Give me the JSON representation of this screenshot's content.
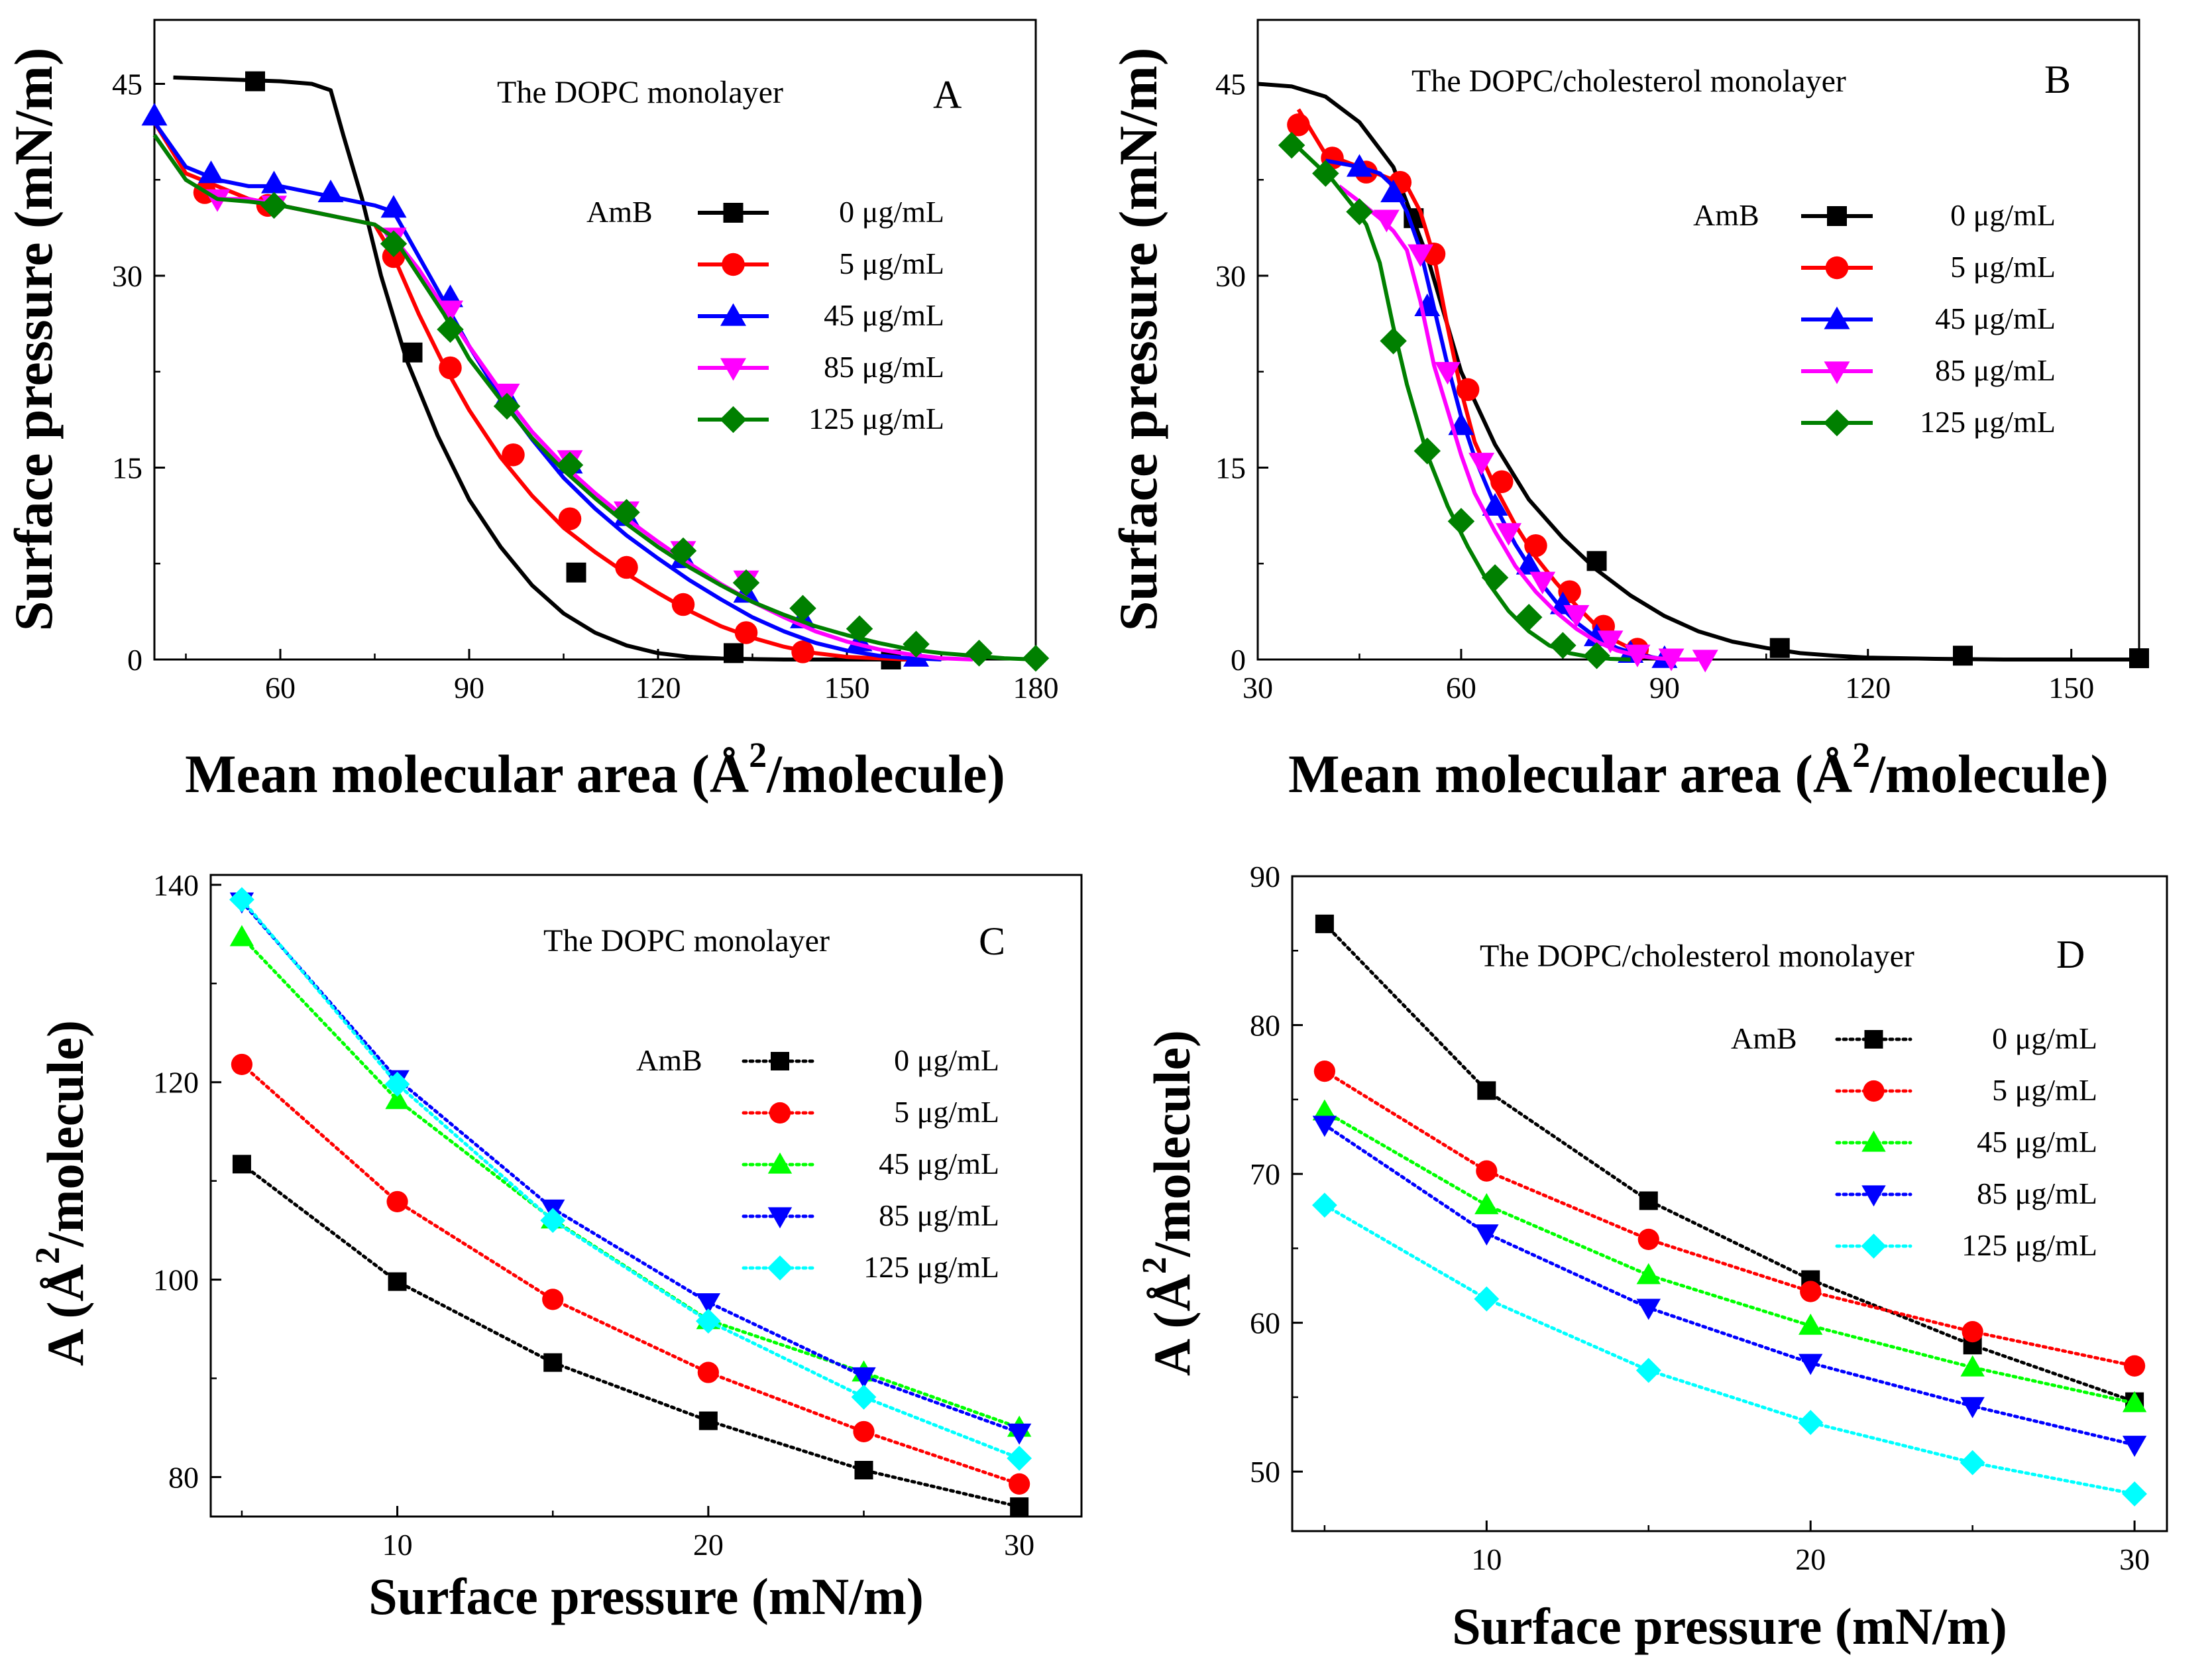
{
  "chart_data": [
    {
      "panel": "A",
      "type": "line",
      "title": "The DOPC monolayer",
      "panel_letter": "A",
      "xlabel_main": "Mean molecular area (Å",
      "xlabel_sup": "2",
      "xlabel_end": "/molecule)",
      "ylabel": "Surface pressure (mN/m)",
      "xlim": [
        40,
        180
      ],
      "ylim": [
        0,
        50
      ],
      "xticks": [
        60,
        90,
        120,
        150,
        180
      ],
      "yticks": [
        0,
        15,
        30,
        45
      ],
      "legend_title": "AmB",
      "legend_position": "right",
      "series": [
        {
          "name": "0 μg/mL",
          "color": "#000000",
          "marker": "square",
          "line": "solid",
          "x": [
            43,
            60,
            65,
            68,
            70,
            73,
            76,
            80,
            85,
            90,
            95,
            100,
            105,
            110,
            115,
            120,
            125,
            130,
            135,
            140,
            150,
            160
          ],
          "y": [
            45.5,
            45.2,
            45,
            44.5,
            41,
            36,
            30,
            23.5,
            17.5,
            12.5,
            8.8,
            5.8,
            3.6,
            2.1,
            1.1,
            0.5,
            0.2,
            0.08,
            0.03,
            0,
            0,
            0
          ],
          "mx": [
            56,
            81,
            107,
            132,
            157
          ],
          "my": [
            45.2,
            24,
            6.8,
            0.5,
            0
          ]
        },
        {
          "name": "5 μg/mL",
          "color": "#ff0000",
          "marker": "circle",
          "line": "solid",
          "x": [
            40,
            45,
            50,
            55,
            60,
            65,
            70,
            75,
            78,
            82,
            86,
            90,
            95,
            100,
            105,
            110,
            115,
            120,
            125,
            130,
            135,
            140,
            145,
            150,
            155,
            160
          ],
          "y": [
            42,
            38,
            37,
            36,
            35.5,
            35,
            34.5,
            34,
            31.5,
            27,
            23,
            19.5,
            15.8,
            12.8,
            10.3,
            8.4,
            6.7,
            5.2,
            3.8,
            2.6,
            1.7,
            1,
            0.5,
            0.2,
            0.1,
            0
          ],
          "mx": [
            48,
            58,
            78,
            87,
            97,
            106,
            115,
            124,
            134,
            143
          ],
          "my": [
            36.5,
            35.5,
            31.5,
            22.8,
            16,
            11,
            7.2,
            4.3,
            2.1,
            0.6
          ]
        },
        {
          "name": "45 μg/mL",
          "color": "#0000ff",
          "marker": "triangle-up",
          "line": "solid",
          "x": [
            40,
            45,
            50,
            55,
            60,
            65,
            70,
            75,
            78,
            82,
            86,
            90,
            95,
            100,
            105,
            110,
            115,
            120,
            125,
            130,
            135,
            140,
            145,
            150,
            155,
            160,
            165
          ],
          "y": [
            42,
            38.5,
            37.5,
            37,
            37,
            36.5,
            36,
            35.5,
            35,
            31.5,
            28,
            24.5,
            20.5,
            17.2,
            14.2,
            11.8,
            9.7,
            7.9,
            6.2,
            4.7,
            3.3,
            2.2,
            1.3,
            0.7,
            0.3,
            0.1,
            0
          ],
          "mx": [
            40,
            49,
            59,
            68,
            78,
            87,
            96,
            106,
            115,
            124,
            134,
            143,
            152,
            161
          ],
          "my": [
            42.5,
            38,
            37.2,
            36.5,
            35.3,
            28.3,
            20.5,
            15.3,
            11.2,
            7.9,
            5.2,
            3.2,
            1.4,
            0.2
          ]
        },
        {
          "name": "85 μg/mL",
          "color": "#ff00ff",
          "marker": "triangle-down",
          "line": "solid",
          "x": [
            40,
            45,
            50,
            55,
            60,
            65,
            70,
            75,
            78,
            82,
            86,
            90,
            95,
            100,
            105,
            110,
            115,
            120,
            125,
            130,
            135,
            140,
            145,
            150,
            155,
            160,
            165,
            170
          ],
          "y": [
            41,
            37.5,
            36,
            36,
            35.5,
            35,
            34.5,
            34,
            33,
            30.5,
            27.5,
            24.5,
            21,
            17.8,
            15.2,
            13,
            11,
            9.2,
            7.5,
            5.9,
            4.5,
            3.3,
            2.2,
            1.4,
            0.8,
            0.4,
            0.1,
            0
          ],
          "mx": [
            50,
            59,
            78,
            87,
            96,
            106,
            115,
            124,
            134
          ],
          "my": [
            36,
            35.5,
            33,
            27.3,
            20.8,
            15.6,
            11.6,
            8.5,
            6.2
          ]
        },
        {
          "name": "125 μg/mL",
          "color": "#008000",
          "marker": "diamond",
          "line": "solid",
          "x": [
            40,
            45,
            50,
            55,
            60,
            65,
            70,
            75,
            78,
            82,
            86,
            90,
            95,
            100,
            105,
            110,
            115,
            120,
            125,
            130,
            135,
            140,
            145,
            150,
            155,
            160,
            165,
            170,
            175,
            180
          ],
          "y": [
            41,
            37.5,
            36,
            35.8,
            35.5,
            35,
            34.5,
            34,
            33,
            30,
            27,
            23.5,
            20.3,
            17.3,
            14.8,
            12.6,
            10.6,
            8.8,
            7.2,
            5.8,
            4.5,
            3.5,
            2.6,
            1.9,
            1.3,
            0.8,
            0.5,
            0.3,
            0.1,
            0
          ],
          "mx": [
            59,
            78,
            87,
            96,
            106,
            115,
            124,
            134,
            143,
            152,
            161,
            171,
            180
          ],
          "my": [
            35.5,
            32.5,
            25.8,
            19.8,
            15.2,
            11.5,
            8.5,
            6,
            4,
            2.4,
            1.2,
            0.5,
            0.1
          ]
        }
      ]
    },
    {
      "panel": "B",
      "type": "line",
      "title": "The DOPC/cholesterol monolayer",
      "panel_letter": "B",
      "xlabel_main": "Mean molecular area (Å",
      "xlabel_sup": "2",
      "xlabel_end": "/molecule)",
      "ylabel": "Surface pressure (mN/m)",
      "xlim": [
        30,
        160
      ],
      "ylim": [
        0,
        50
      ],
      "xticks": [
        30,
        60,
        90,
        120,
        150
      ],
      "yticks": [
        0,
        15,
        30,
        45
      ],
      "legend_title": "AmB",
      "legend_position": "right",
      "series": [
        {
          "name": "0 μg/mL",
          "color": "#000000",
          "marker": "square",
          "line": "solid",
          "x": [
            30,
            35,
            40,
            45,
            50,
            55,
            60,
            65,
            70,
            75,
            80,
            85,
            90,
            95,
            100,
            105,
            110,
            115,
            120,
            130,
            140,
            150,
            160
          ],
          "y": [
            45,
            44.8,
            44,
            42,
            38.5,
            31.5,
            22.5,
            16.8,
            12.5,
            9.5,
            7,
            5,
            3.4,
            2.2,
            1.4,
            0.9,
            0.5,
            0.3,
            0.15,
            0.05,
            0,
            0,
            0
          ],
          "mx": [
            53,
            80,
            107,
            134,
            160
          ],
          "my": [
            34.5,
            7.7,
            0.9,
            0.3,
            0.1
          ]
        },
        {
          "name": "5 μg/mL",
          "color": "#ff0000",
          "marker": "circle",
          "line": "solid",
          "x": [
            36,
            40,
            45,
            50,
            52,
            54,
            56,
            58,
            60,
            62,
            65,
            68,
            71,
            74,
            77,
            80,
            83,
            86,
            88
          ],
          "y": [
            43,
            39.5,
            38.5,
            37.5,
            37,
            35,
            31.5,
            26,
            21,
            17,
            13.5,
            10.5,
            8,
            6,
            4.2,
            2.6,
            1.4,
            0.6,
            0.2
          ],
          "mx": [
            36,
            41,
            46,
            51,
            56,
            61,
            66,
            71,
            76,
            81,
            86
          ],
          "my": [
            41.8,
            39.2,
            38.1,
            37.3,
            31.7,
            21.1,
            13.9,
            8.9,
            5.3,
            2.6,
            0.8
          ]
        },
        {
          "name": "45 μg/mL",
          "color": "#0000ff",
          "marker": "triangle-up",
          "line": "solid",
          "x": [
            40,
            45,
            48,
            50,
            52,
            54,
            56,
            58,
            60,
            62,
            65,
            68,
            71,
            74,
            77,
            80,
            83,
            86,
            89,
            92
          ],
          "y": [
            39,
            38.5,
            38,
            37,
            35,
            32,
            27.5,
            23,
            19,
            15.8,
            12,
            9,
            6.5,
            4.5,
            2.9,
            1.7,
            0.9,
            0.4,
            0.1,
            0
          ],
          "mx": [
            45,
            50,
            55,
            60,
            65,
            70,
            75,
            80,
            85,
            90
          ],
          "my": [
            38.5,
            36.5,
            27.6,
            18.3,
            12,
            7.4,
            4.3,
            1.8,
            0.5,
            0.1
          ]
        },
        {
          "name": "85 μg/mL",
          "color": "#ff00ff",
          "marker": "triangle-down",
          "line": "solid",
          "x": [
            42,
            45,
            48,
            50,
            52,
            54,
            56,
            58,
            60,
            62,
            65,
            68,
            71,
            74,
            77,
            80,
            83,
            86,
            89,
            92,
            95
          ],
          "y": [
            37,
            35.8,
            34.5,
            33.5,
            32,
            28,
            23,
            19.5,
            16,
            13,
            10,
            7.3,
            5.3,
            3.7,
            2.4,
            1.4,
            0.7,
            0.3,
            0.1,
            0,
            0
          ],
          "mx": [
            49,
            54,
            58,
            63,
            67,
            72,
            77,
            82,
            86,
            91,
            96
          ],
          "my": [
            34.4,
            31.7,
            22.5,
            15.4,
            9.9,
            6.1,
            3.5,
            1.5,
            0.4,
            0.1,
            0
          ]
        },
        {
          "name": "125 μg/mL",
          "color": "#008000",
          "marker": "diamond",
          "line": "solid",
          "x": [
            35,
            38,
            41,
            44,
            46,
            48,
            50,
            52,
            55,
            58,
            61,
            64,
            67,
            70,
            73,
            76,
            79,
            82,
            85
          ],
          "y": [
            40.5,
            39,
            37.5,
            35.5,
            34,
            31,
            26,
            21.5,
            16,
            12,
            8.8,
            6,
            3.8,
            2.2,
            1.1,
            0.5,
            0.2,
            0.05,
            0
          ],
          "mx": [
            35,
            40,
            45,
            50,
            55,
            60,
            65,
            70,
            75,
            80
          ],
          "my": [
            40.2,
            38,
            35,
            24.9,
            16.3,
            10.8,
            6.4,
            3.3,
            1.1,
            0.3
          ]
        }
      ]
    },
    {
      "panel": "C",
      "type": "line",
      "title": "The DOPC monolayer",
      "panel_letter": "C",
      "xlabel_main": "Surface pressure (mN/m)",
      "ylabel_main": "A (Å",
      "ylabel_sup": "2",
      "ylabel_end": "/molecule)",
      "xlim": [
        4,
        32
      ],
      "ylim": [
        76,
        141
      ],
      "xticks": [
        10,
        20,
        30
      ],
      "yticks": [
        80,
        100,
        120,
        140
      ],
      "legend_title": "AmB",
      "legend_position": "right",
      "x": [
        5,
        10,
        15,
        20,
        25,
        30
      ],
      "series": [
        {
          "name": "0 μg/mL",
          "color": "#000000",
          "marker": "square",
          "line": "dotted",
          "values": [
            111.7,
            99.8,
            91.6,
            85.7,
            80.7,
            77
          ]
        },
        {
          "name": "5 μg/mL",
          "color": "#ff0000",
          "marker": "circle",
          "line": "dotted",
          "values": [
            121.8,
            107.9,
            98,
            90.6,
            84.6,
            79.3
          ]
        },
        {
          "name": "45 μg/mL",
          "color": "#00ff00",
          "marker": "triangle-up",
          "line": "dotted",
          "values": [
            134.7,
            118.2,
            106.1,
            95.9,
            90.6,
            85
          ]
        },
        {
          "name": "85 μg/mL",
          "color": "#0000ff",
          "marker": "triangle-down",
          "line": "dotted",
          "values": [
            138.3,
            120.3,
            107.2,
            97.7,
            90.2,
            84.5
          ]
        },
        {
          "name": "125 μg/mL",
          "color": "#00ffff",
          "marker": "diamond",
          "line": "dotted",
          "values": [
            138.5,
            119.8,
            106,
            95.8,
            88.1,
            81.9
          ]
        }
      ]
    },
    {
      "panel": "D",
      "type": "line",
      "title": "The DOPC/cholesterol monolayer",
      "panel_letter": "D",
      "xlabel_main": "Surface pressure (mN/m)",
      "ylabel_main": "A (Å",
      "ylabel_sup": "2",
      "ylabel_end": "/molecule)",
      "xlim": [
        4,
        31
      ],
      "ylim": [
        46,
        90
      ],
      "xticks": [
        10,
        20,
        30
      ],
      "yticks": [
        50,
        60,
        70,
        80,
        90
      ],
      "legend_title": "AmB",
      "legend_position": "right",
      "x": [
        5,
        10,
        15,
        20,
        25,
        30
      ],
      "series": [
        {
          "name": "0 μg/mL",
          "color": "#000000",
          "marker": "square",
          "line": "dotted",
          "values": [
            86.8,
            75.6,
            68.2,
            62.9,
            58.5,
            54.7
          ]
        },
        {
          "name": "5 μg/mL",
          "color": "#ff0000",
          "marker": "circle",
          "line": "dotted",
          "values": [
            76.9,
            70.2,
            65.6,
            62.1,
            59.4,
            57.1
          ]
        },
        {
          "name": "45 μg/mL",
          "color": "#00ff00",
          "marker": "triangle-up",
          "line": "dotted",
          "values": [
            74.2,
            67.9,
            63.2,
            59.8,
            57,
            54.6
          ]
        },
        {
          "name": "85 μg/mL",
          "color": "#0000ff",
          "marker": "triangle-down",
          "line": "dotted",
          "values": [
            73.3,
            66,
            61,
            57.3,
            54.4,
            51.8
          ]
        },
        {
          "name": "125 μg/mL",
          "color": "#00ffff",
          "marker": "diamond",
          "line": "dotted",
          "values": [
            67.9,
            61.6,
            56.8,
            53.3,
            50.6,
            48.5
          ]
        }
      ]
    }
  ]
}
